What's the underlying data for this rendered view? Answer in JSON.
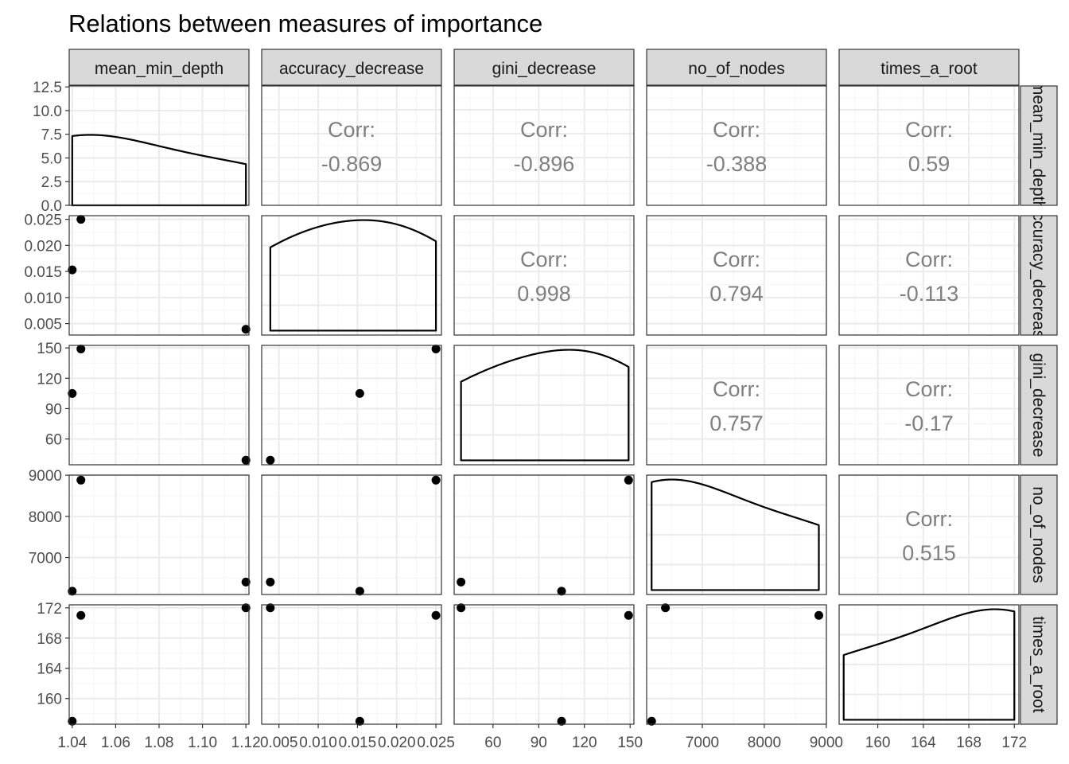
{
  "chart_data": {
    "type": "scatter",
    "title": "Relations between measures of importance",
    "variables": [
      "mean_min_depth",
      "accuracy_decrease",
      "gini_decrease",
      "no_of_nodes",
      "times_a_root"
    ],
    "column_labels": [
      "mean_min_depth",
      "accuracy_decrease",
      "gini_decrease",
      "no_of_nodes",
      "times_a_root"
    ],
    "row_labels": [
      "mean_min_depth",
      "accuracy_decrease",
      "gini_decrease",
      "no_of_nodes",
      "times_a_root"
    ],
    "corr_label": "Corr:",
    "ranges": [
      [
        1.0386,
        1.1214
      ],
      [
        0.0028,
        0.0257
      ],
      [
        34.5,
        152.5
      ],
      [
        6102,
        9002
      ],
      [
        156.6,
        172.4
      ]
    ],
    "points": [
      [
        1.04,
        0.0153,
        105,
        6182,
        157.0
      ],
      [
        1.044,
        0.025,
        149,
        8880,
        171.0
      ],
      [
        1.12,
        0.0039,
        39,
        6405,
        172.0
      ]
    ],
    "ticks": [
      [
        1.04,
        1.06,
        1.08,
        1.1,
        1.12
      ],
      [
        0.005,
        0.01,
        0.015,
        0.02,
        0.025
      ],
      [
        60,
        90,
        120,
        150
      ],
      [
        7000,
        8000,
        9000
      ],
      [
        160,
        164,
        168,
        172
      ]
    ],
    "tick_labels": [
      [
        "1.04",
        "1.06",
        "1.08",
        "1.10",
        "1.12"
      ],
      [
        "0.005",
        "0.010",
        "0.015",
        "0.020",
        "0.025"
      ],
      [
        "60",
        "90",
        "120",
        "150"
      ],
      [
        "7000",
        "8000",
        "9000"
      ],
      [
        "160",
        "164",
        "168",
        "172"
      ]
    ],
    "density_y_ticks": [
      0.0,
      2.5,
      5.0,
      7.5,
      10.0,
      12.5
    ],
    "density_y_tick_labels": [
      "0.0",
      "2.5",
      "5.0",
      "7.5",
      "10.0",
      "12.5"
    ],
    "density_y_range": [
      0,
      12.6
    ],
    "correlations": [
      {
        "row": 0,
        "col": 1,
        "value": "-0.869"
      },
      {
        "row": 0,
        "col": 2,
        "value": "-0.896"
      },
      {
        "row": 0,
        "col": 3,
        "value": "-0.388"
      },
      {
        "row": 0,
        "col": 4,
        "value": "0.59"
      },
      {
        "row": 1,
        "col": 2,
        "value": "0.998"
      },
      {
        "row": 1,
        "col": 3,
        "value": "0.794"
      },
      {
        "row": 1,
        "col": 4,
        "value": "-0.113"
      },
      {
        "row": 2,
        "col": 3,
        "value": "0.757"
      },
      {
        "row": 2,
        "col": 4,
        "value": "-0.17"
      },
      {
        "row": 3,
        "col": 4,
        "value": "0.515"
      }
    ],
    "grid": true,
    "colors": {
      "strip_fill": "#d9d9d9",
      "panel_border": "#333333",
      "grid_major": "#ebebeb",
      "grid_minor": "#f5f5f5",
      "point": "#000000",
      "corr_text": "#808080"
    }
  }
}
